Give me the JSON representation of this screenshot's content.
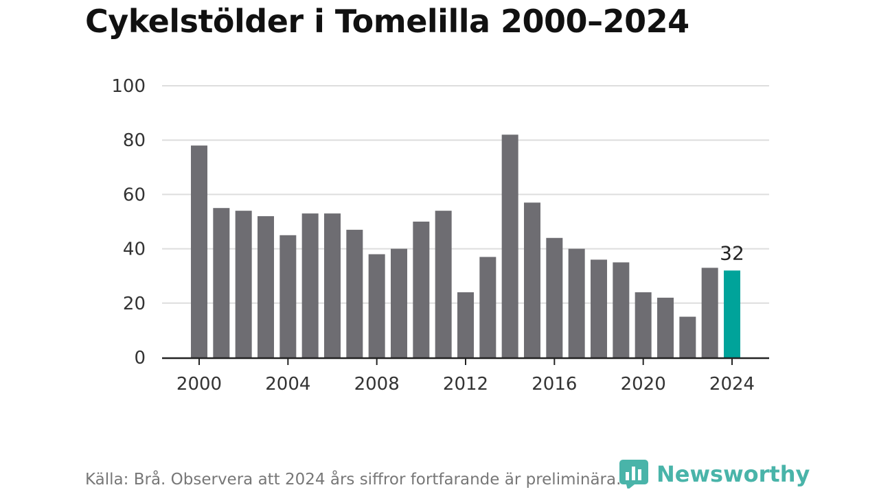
{
  "chart_data": {
    "type": "bar",
    "title": "Cykelstölder i Tomelilla 2000–2024",
    "xlabel": "",
    "ylabel": "",
    "categories": [
      "2000",
      "2001",
      "2002",
      "2003",
      "2004",
      "2005",
      "2006",
      "2007",
      "2008",
      "2009",
      "2010",
      "2011",
      "2012",
      "2013",
      "2014",
      "2015",
      "2016",
      "2017",
      "2018",
      "2019",
      "2020",
      "2021",
      "2022",
      "2023",
      "2024"
    ],
    "values": [
      78,
      55,
      54,
      52,
      45,
      53,
      53,
      47,
      38,
      40,
      50,
      54,
      24,
      37,
      82,
      57,
      44,
      40,
      36,
      35,
      24,
      22,
      15,
      33,
      32
    ],
    "ylim": [
      0,
      100
    ],
    "yticks": [
      0,
      20,
      40,
      60,
      80,
      100
    ],
    "xticks": [
      "2000",
      "2004",
      "2008",
      "2012",
      "2016",
      "2020",
      "2024"
    ],
    "highlight_category": "2024",
    "data_label": "32",
    "grid": true,
    "colors": {
      "bar": "#6e6d72",
      "highlight": "#00a39a",
      "grid": "#dddddd",
      "axis": "#222222"
    }
  },
  "footer": {
    "source": "Källa: Brå. Observera att 2024 års siffror fortfarande är preliminära.",
    "brand": "Newsworthy",
    "brand_icon": "newsworthy-logo-icon",
    "brand_color": "#2aa79b"
  }
}
